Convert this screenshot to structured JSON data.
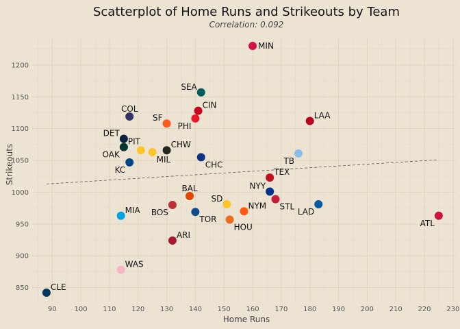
{
  "chart_data": {
    "type": "scatter",
    "title": "Scatterplot of Home Runs and Strikeouts by Team",
    "subtitle": "Correlation: 0.092",
    "xlabel": "Home Runs",
    "ylabel": "Strikeouts",
    "xlim": [
      83,
      231
    ],
    "ylim": [
      828,
      1243
    ],
    "x_ticks": [
      90,
      100,
      110,
      120,
      130,
      140,
      150,
      160,
      170,
      180,
      190,
      200,
      210,
      220,
      230
    ],
    "y_ticks": [
      850,
      900,
      950,
      1000,
      1050,
      1100,
      1150,
      1200
    ],
    "grid": true,
    "legend": "none",
    "trend_line": {
      "style": "dashed",
      "x": [
        88,
        225
      ],
      "y": [
        1013,
        1051
      ]
    },
    "points": [
      {
        "team": "MIN",
        "x": 160,
        "y": 1230,
        "color": "#d31145"
      },
      {
        "team": "SEA",
        "x": 142,
        "y": 1157,
        "color": "#005c5c"
      },
      {
        "team": "CIN",
        "x": 141,
        "y": 1128,
        "color": "#c6011f"
      },
      {
        "team": "COL",
        "x": 117,
        "y": 1119,
        "color": "#333366"
      },
      {
        "team": "SF",
        "x": 130,
        "y": 1108,
        "color": "#fd5a1e"
      },
      {
        "team": "PHI",
        "x": 140,
        "y": 1116,
        "color": "#e81828"
      },
      {
        "team": "LAA",
        "x": 180,
        "y": 1112,
        "color": "#ba0021"
      },
      {
        "team": "DET",
        "x": 115,
        "y": 1084,
        "color": "#0c2340"
      },
      {
        "team": "PIT",
        "x": 115,
        "y": 1071,
        "color": "#27251f"
      },
      {
        "team": "OAK",
        "x": 115,
        "y": 1071,
        "color": "#003831"
      },
      {
        "team": "MIL",
        "x": 121,
        "y": 1066,
        "color": "#ffc52f"
      },
      {
        "team": "MIL",
        "x": 125,
        "y": 1063,
        "color": "#ffc52f"
      },
      {
        "team": "CHW",
        "x": 130,
        "y": 1066,
        "color": "#27251f"
      },
      {
        "team": "KC",
        "x": 117,
        "y": 1047,
        "color": "#004687"
      },
      {
        "team": "CHC",
        "x": 142,
        "y": 1055,
        "color": "#0e3386"
      },
      {
        "team": "TB",
        "x": 176,
        "y": 1061,
        "color": "#8fbce6"
      },
      {
        "team": "TEX",
        "x": 166,
        "y": 1023,
        "color": "#c0111f"
      },
      {
        "team": "NYY",
        "x": 166,
        "y": 1001,
        "color": "#003087"
      },
      {
        "team": "BAL",
        "x": 138,
        "y": 994,
        "color": "#df4601"
      },
      {
        "team": "SD",
        "x": 151,
        "y": 981,
        "color": "#ffc425"
      },
      {
        "team": "NYM",
        "x": 157,
        "y": 970,
        "color": "#ff5910"
      },
      {
        "team": "STL",
        "x": 168,
        "y": 989,
        "color": "#c41e3a"
      },
      {
        "team": "LAD",
        "x": 183,
        "y": 981,
        "color": "#005a9c"
      },
      {
        "team": "MIA",
        "x": 114,
        "y": 963,
        "color": "#00a3e0"
      },
      {
        "team": "BOS",
        "x": 132,
        "y": 980,
        "color": "#bd3039"
      },
      {
        "team": "TOR",
        "x": 140,
        "y": 969,
        "color": "#134a8e"
      },
      {
        "team": "HOU",
        "x": 152,
        "y": 957,
        "color": "#eb6e1f"
      },
      {
        "team": "ATL",
        "x": 225,
        "y": 963,
        "color": "#ce1141"
      },
      {
        "team": "ARI",
        "x": 132,
        "y": 924,
        "color": "#a71930"
      },
      {
        "team": "WAS",
        "x": 114,
        "y": 878,
        "color": "#f7b6c8"
      },
      {
        "team": "CLE",
        "x": 88,
        "y": 842,
        "color": "#00385d"
      }
    ],
    "labels": [
      {
        "text": "MIN",
        "x": 160,
        "y": 1230,
        "side": "right"
      },
      {
        "text": "SEA",
        "x": 142,
        "y": 1157,
        "side": "upper-left"
      },
      {
        "text": "CIN",
        "x": 141,
        "y": 1128,
        "side": "upper-right"
      },
      {
        "text": "COL",
        "x": 117,
        "y": 1119,
        "side": "upper"
      },
      {
        "text": "SF",
        "x": 130,
        "y": 1108,
        "side": "upper-left"
      },
      {
        "text": "PHI",
        "x": 140,
        "y": 1116,
        "side": "lower-left"
      },
      {
        "text": "LAA",
        "x": 180,
        "y": 1112,
        "side": "upper-right"
      },
      {
        "text": "DET",
        "x": 115,
        "y": 1084,
        "side": "upper-left"
      },
      {
        "text": "PIT",
        "x": 115,
        "y": 1071,
        "side": "upper-right"
      },
      {
        "text": "OAK",
        "x": 115,
        "y": 1071,
        "side": "lower-left"
      },
      {
        "text": "MIL",
        "x": 125,
        "y": 1063,
        "side": "lower-right"
      },
      {
        "text": "CHW",
        "x": 130,
        "y": 1066,
        "side": "upper-right"
      },
      {
        "text": "KC",
        "x": 117,
        "y": 1047,
        "side": "lower-left"
      },
      {
        "text": "CHC",
        "x": 142,
        "y": 1055,
        "side": "lower-right"
      },
      {
        "text": "TB",
        "x": 176,
        "y": 1061,
        "side": "lower-left"
      },
      {
        "text": "TEX",
        "x": 166,
        "y": 1023,
        "side": "upper-right"
      },
      {
        "text": "NYY",
        "x": 166,
        "y": 1001,
        "side": "upper-left"
      },
      {
        "text": "BAL",
        "x": 138,
        "y": 994,
        "side": "upper"
      },
      {
        "text": "SD",
        "x": 151,
        "y": 981,
        "side": "upper-left"
      },
      {
        "text": "NYM",
        "x": 157,
        "y": 970,
        "side": "upper-right"
      },
      {
        "text": "STL",
        "x": 168,
        "y": 989,
        "side": "lower-right"
      },
      {
        "text": "LAD",
        "x": 183,
        "y": 981,
        "side": "lower-left"
      },
      {
        "text": "MIA",
        "x": 114,
        "y": 963,
        "side": "upper-right"
      },
      {
        "text": "BOS",
        "x": 132,
        "y": 980,
        "side": "lower-left"
      },
      {
        "text": "TOR",
        "x": 140,
        "y": 969,
        "side": "lower-right"
      },
      {
        "text": "HOU",
        "x": 152,
        "y": 957,
        "side": "lower-right"
      },
      {
        "text": "ATL",
        "x": 225,
        "y": 963,
        "side": "lower-left"
      },
      {
        "text": "ARI",
        "x": 132,
        "y": 924,
        "side": "upper-right"
      },
      {
        "text": "WAS",
        "x": 114,
        "y": 878,
        "side": "upper-right"
      },
      {
        "text": "CLE",
        "x": 88,
        "y": 842,
        "side": "upper-right"
      }
    ]
  }
}
